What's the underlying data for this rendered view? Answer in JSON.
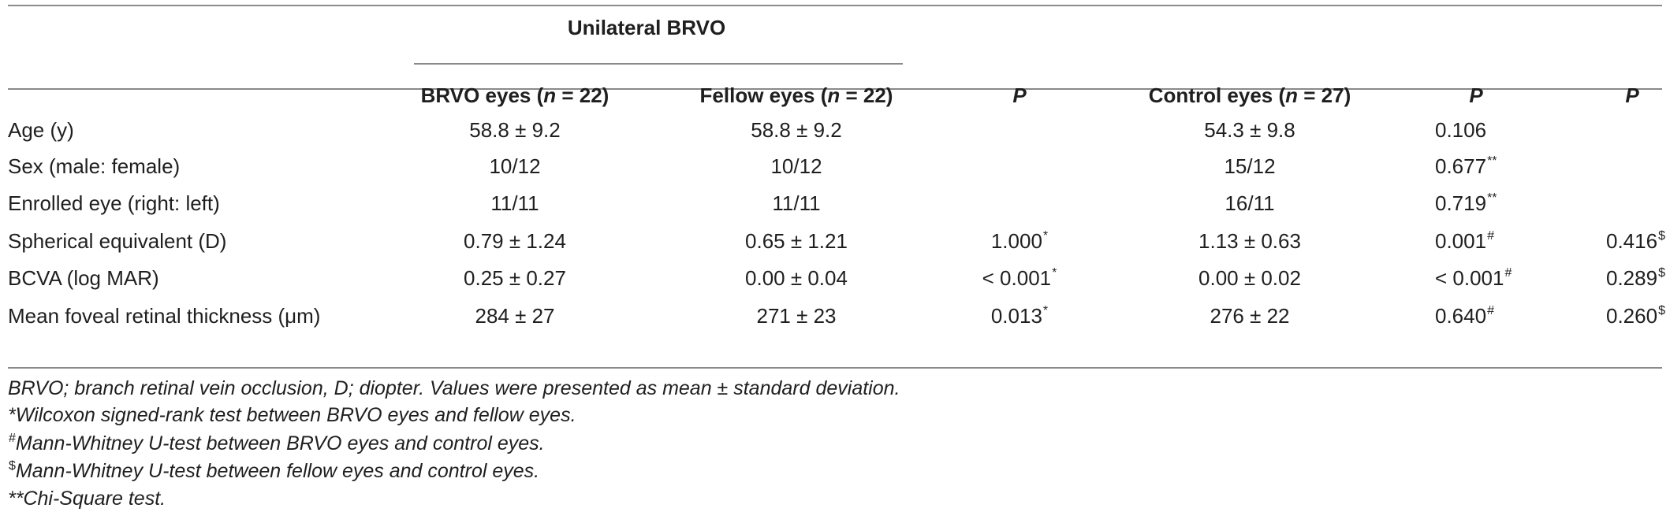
{
  "table": {
    "group_header": "Unilateral BRVO",
    "columns": [
      {
        "pre": "BRVO eyes (",
        "n": "n",
        "post": " = 22)"
      },
      {
        "pre": "Fellow eyes (",
        "n": "n",
        "post": " = 22)"
      },
      {
        "label": "P"
      },
      {
        "pre": "Control eyes (",
        "n": "n",
        "post": " = 27)"
      },
      {
        "label": "P"
      },
      {
        "label": "P"
      }
    ],
    "rows": [
      {
        "label": "Age (y)",
        "brvo": "58.8 ± 9.2",
        "fellow": "58.8 ± 9.2",
        "p1": "",
        "p1_sup": "",
        "control": "54.3 ± 9.8",
        "p2": "0.106",
        "p2_sup": "",
        "p3": "",
        "p3_sup": ""
      },
      {
        "label": "Sex (male: female)",
        "brvo": "10/12",
        "fellow": "10/12",
        "p1": "",
        "p1_sup": "",
        "control": "15/12",
        "p2": "0.677",
        "p2_sup": "**",
        "p3": "",
        "p3_sup": ""
      },
      {
        "label": "Enrolled eye (right: left)",
        "brvo": "11/11",
        "fellow": "11/11",
        "p1": "",
        "p1_sup": "",
        "control": "16/11",
        "p2": "0.719",
        "p2_sup": "**",
        "p3": "",
        "p3_sup": ""
      },
      {
        "label": "Spherical equivalent (D)",
        "brvo": "0.79 ± 1.24",
        "fellow": "0.65 ± 1.21",
        "p1": "1.000",
        "p1_sup": "*",
        "control": "1.13 ± 0.63",
        "p2": "0.001",
        "p2_sup": "#",
        "p3": "0.416",
        "p3_sup": "$"
      },
      {
        "label": "BCVA (log MAR)",
        "brvo": "0.25 ± 0.27",
        "fellow": "0.00 ± 0.04",
        "p1": "< 0.001",
        "p1_sup": "*",
        "control": "0.00 ± 0.02",
        "p2": "< 0.001",
        "p2_sup": "#",
        "p3": "0.289",
        "p3_sup": "$"
      },
      {
        "label": "Mean foveal retinal thickness (μm)",
        "brvo": "284 ± 27",
        "fellow": "271 ± 23",
        "p1": "0.013",
        "p1_sup": "*",
        "control": "276 ± 22",
        "p2": "0.640",
        "p2_sup": "#",
        "p3": "0.260",
        "p3_sup": "$"
      }
    ]
  },
  "footnotes": [
    {
      "sup": "",
      "text": "BRVO; branch retinal vein occlusion, D; diopter. Values were presented as mean ± standard deviation."
    },
    {
      "sup": "",
      "text": "*Wilcoxon signed-rank test between BRVO eyes and fellow eyes."
    },
    {
      "sup": "#",
      "text": "Mann-Whitney U-test between BRVO eyes and control eyes."
    },
    {
      "sup": "$",
      "text": "Mann-Whitney U-test between fellow eyes and control eyes."
    },
    {
      "sup": "",
      "text": "**Chi-Square test."
    }
  ]
}
